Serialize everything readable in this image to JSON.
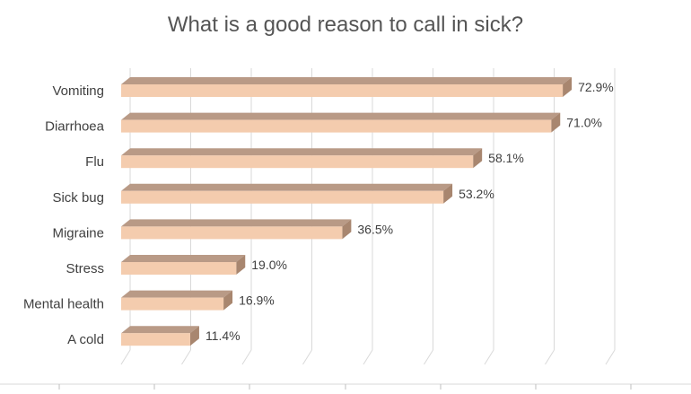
{
  "chart_data": {
    "type": "bar",
    "orientation": "horizontal",
    "title": "What is a good reason to call in sick?",
    "categories": [
      "Vomiting",
      "Diarrhoea",
      "Flu",
      "Sick bug",
      "Migraine",
      "Stress",
      "Mental health",
      "A cold"
    ],
    "values": [
      72.9,
      71.0,
      58.1,
      53.2,
      36.5,
      19.0,
      16.9,
      11.4
    ],
    "value_labels": [
      "72.9%",
      "71.0%",
      "58.1%",
      "53.2%",
      "36.5%",
      "19.0%",
      "16.9%",
      "11.4%"
    ],
    "xlim": [
      0,
      80
    ],
    "grid": true,
    "legend": "none",
    "colors": {
      "bar_front": "#F4CCAE",
      "bar_top": "#B99A86",
      "bar_side": "#A8866F",
      "grid": "#D9D9D9",
      "text": "#404040"
    }
  }
}
